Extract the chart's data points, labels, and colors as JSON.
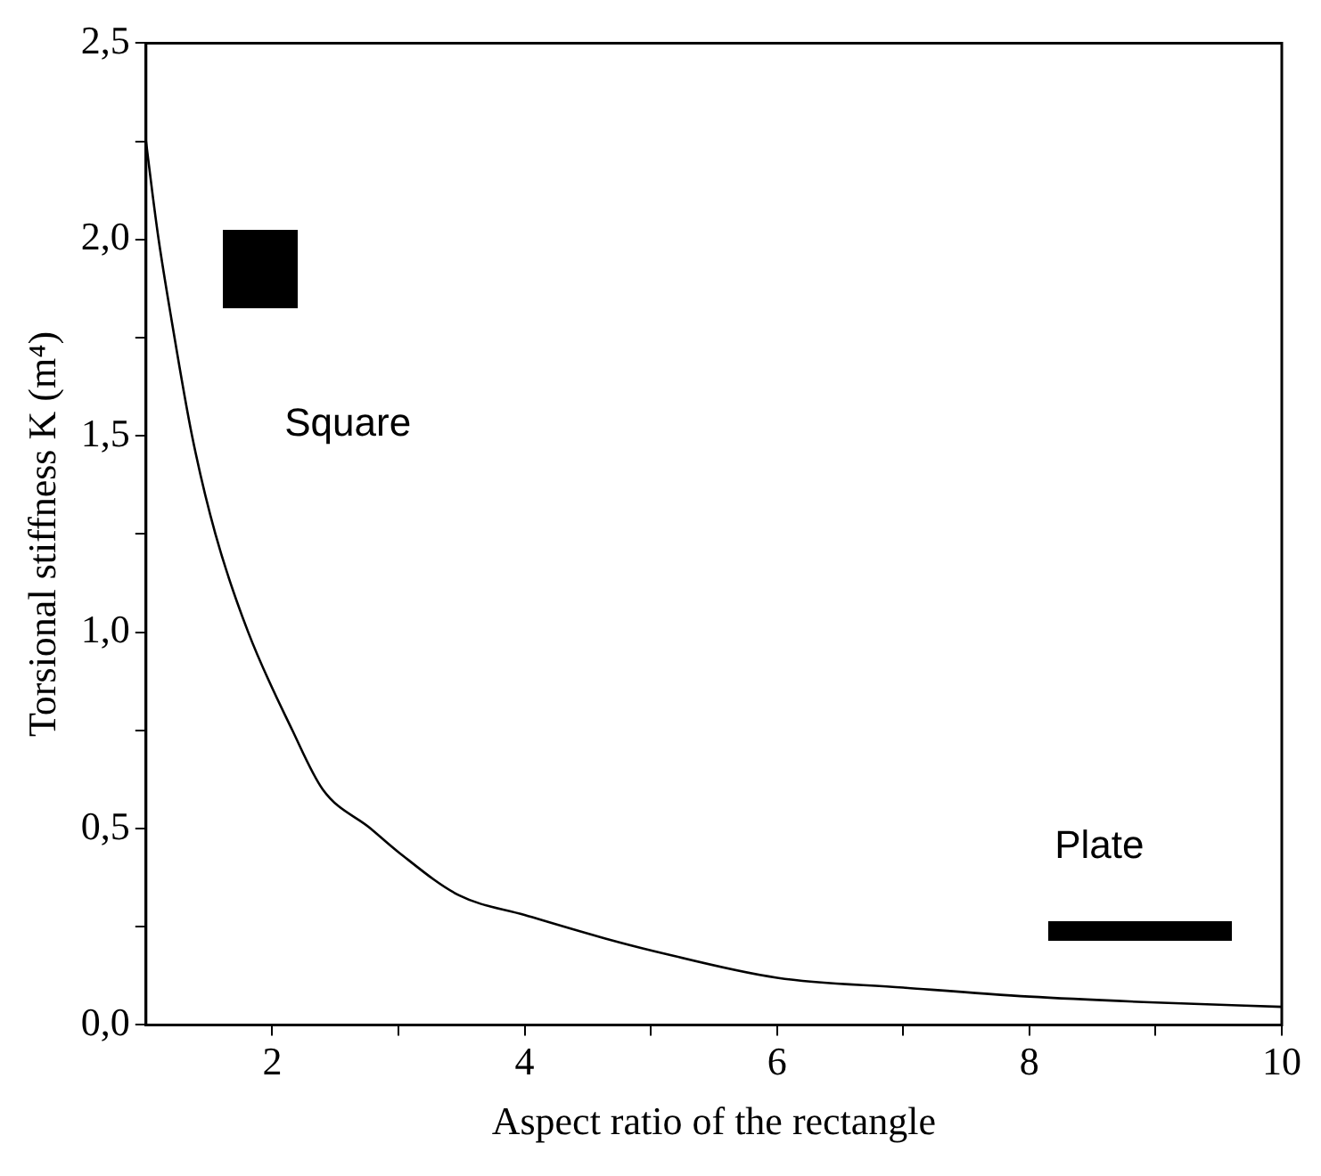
{
  "chart_data": {
    "type": "line",
    "xlabel": "Aspect ratio of the rectangle",
    "ylabel": "Torsional stiffness K (m⁴)",
    "x": [
      1,
      1.05,
      1.1,
      1.2,
      1.365,
      1.55,
      1.81,
      2.16,
      2.4,
      2.78,
      3,
      3.48,
      4,
      4.64,
      5,
      6,
      7,
      8,
      9,
      10
    ],
    "series": [
      {
        "color": "#000000",
        "values": [
          2.25,
          2.12,
          2.0,
          1.8,
          1.5,
          1.25,
          1.0,
          0.75,
          0.6,
          0.5,
          0.44,
          0.33,
          0.28,
          0.22,
          0.19,
          0.12,
          0.095,
          0.072,
          0.057,
          0.046
        ]
      }
    ],
    "xlim": [
      1,
      10
    ],
    "xticks": [
      {
        "value": 2,
        "label": "2"
      },
      {
        "value": 3,
        "label": null
      },
      {
        "value": 4,
        "label": "4"
      },
      {
        "value": 5,
        "label": null
      },
      {
        "value": 6,
        "label": "6"
      },
      {
        "value": 7,
        "label": null
      },
      {
        "value": 8,
        "label": "8"
      },
      {
        "value": 9,
        "label": null
      },
      {
        "value": 10,
        "label": "10"
      }
    ],
    "ylim": [
      0,
      2.5
    ],
    "yticks": [
      {
        "value": 0,
        "label": "0,0"
      },
      {
        "value": 0.25,
        "label": null
      },
      {
        "value": 0.5,
        "label": "0,5"
      },
      {
        "value": 0.75,
        "label": null
      },
      {
        "value": 1,
        "label": "1,0"
      },
      {
        "value": 1.25,
        "label": null
      },
      {
        "value": 1.5,
        "label": "1,5"
      },
      {
        "value": 1.75,
        "label": null
      },
      {
        "value": 2,
        "label": "2,0"
      },
      {
        "value": 2.25,
        "label": null
      },
      {
        "value": 2.5,
        "label": "2,5"
      }
    ],
    "annotations": [
      "Square",
      "Plate"
    ],
    "grid": false,
    "legend": false,
    "marker": "none",
    "line_style": "solid"
  }
}
